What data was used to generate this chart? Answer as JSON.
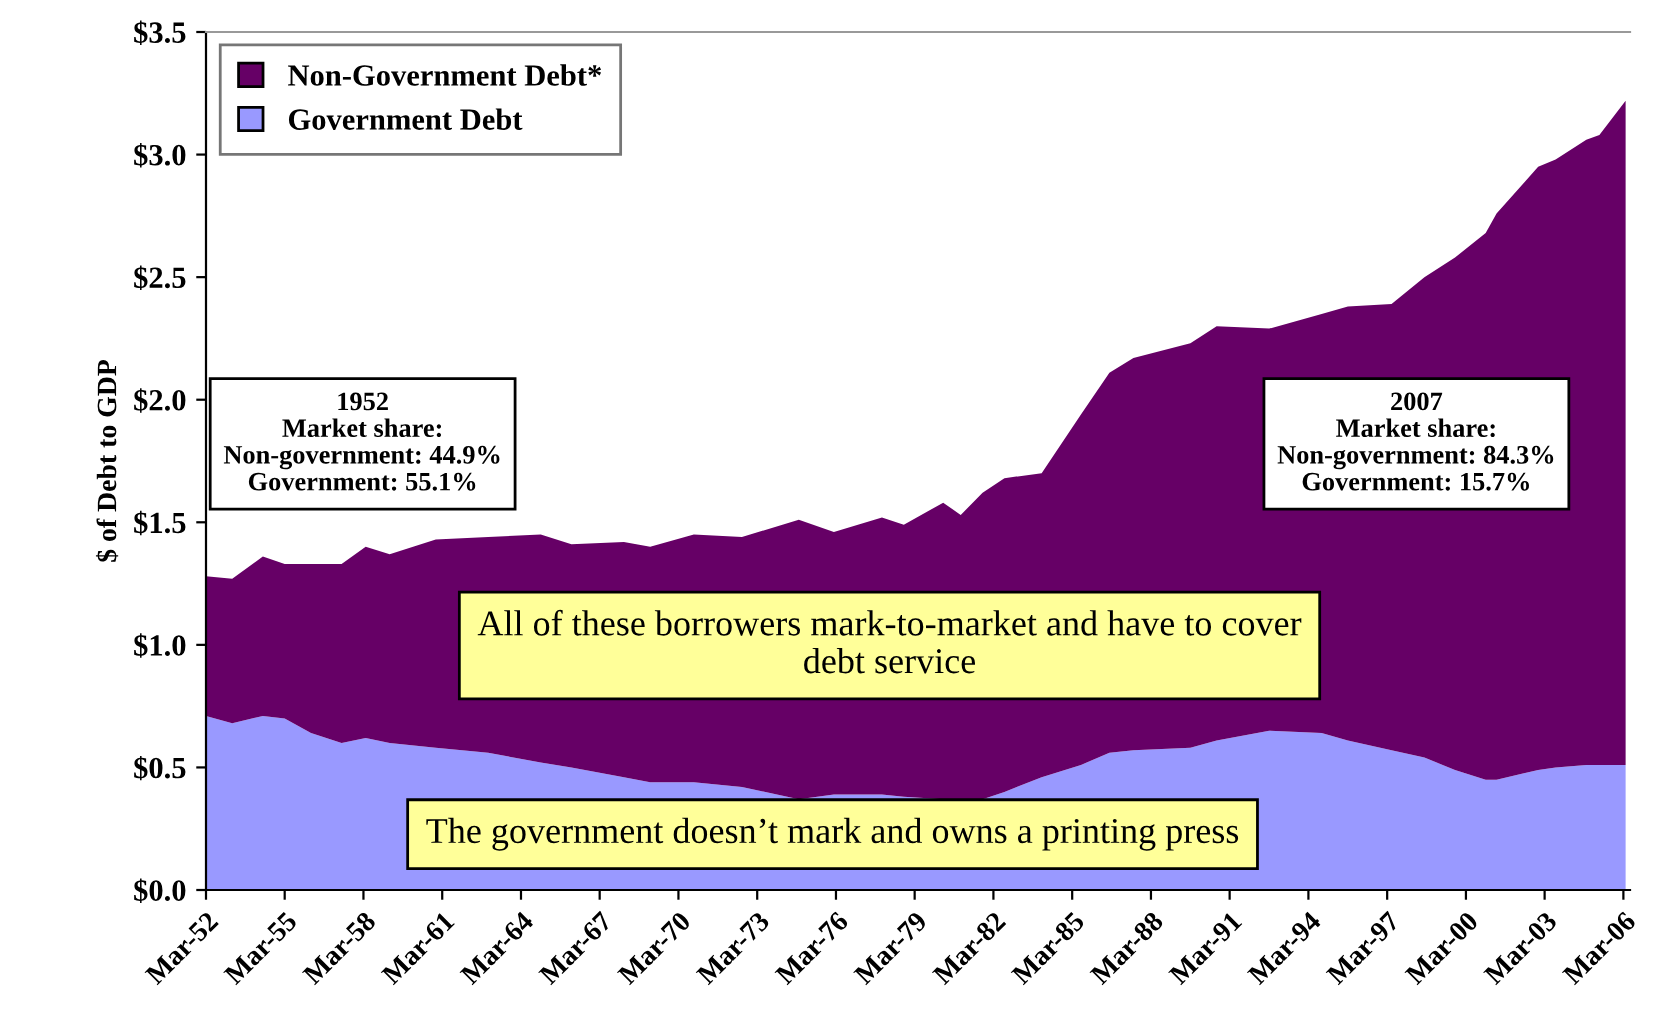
{
  "chart_data": {
    "type": "area",
    "stacked": true,
    "ylabel": "$ of Debt to GDP",
    "x": [
      "1952-03",
      "1953-03",
      "1954-05",
      "1955-03",
      "1956-03",
      "1957-05",
      "1958-04",
      "1959-03",
      "1960-12",
      "1962-12",
      "1964-12",
      "1966-02",
      "1968-02",
      "1969-02",
      "1970-10",
      "1972-08",
      "1974-10",
      "1976-02",
      "1977-12",
      "1978-10",
      "1980-04",
      "1980-12",
      "1981-10",
      "1982-08",
      "1984-01",
      "1985-07",
      "1986-08",
      "1987-07",
      "1989-09",
      "1990-09",
      "1992-09",
      "1994-09",
      "1995-09",
      "1997-05",
      "1998-08",
      "1999-10",
      "2000-12",
      "2001-05",
      "2002-12",
      "2003-08",
      "2004-10",
      "2005-04",
      "2006-04"
    ],
    "series": [
      {
        "name": "Government Debt",
        "color": "#9999ff",
        "values": [
          0.71,
          0.68,
          0.71,
          0.7,
          0.64,
          0.6,
          0.62,
          0.6,
          0.58,
          0.56,
          0.52,
          0.5,
          0.46,
          0.44,
          0.44,
          0.42,
          0.37,
          0.39,
          0.39,
          0.38,
          0.37,
          0.37,
          0.37,
          0.4,
          0.46,
          0.51,
          0.56,
          0.57,
          0.58,
          0.61,
          0.65,
          0.64,
          0.61,
          0.57,
          0.54,
          0.49,
          0.45,
          0.45,
          0.49,
          0.5,
          0.51,
          0.51,
          0.51
        ]
      },
      {
        "name": "Non-Government Debt*",
        "color": "#660066",
        "values": [
          0.57,
          0.59,
          0.65,
          0.63,
          0.69,
          0.73,
          0.78,
          0.77,
          0.85,
          0.88,
          0.93,
          0.91,
          0.96,
          0.96,
          1.01,
          1.02,
          1.14,
          1.07,
          1.13,
          1.11,
          1.21,
          1.16,
          1.25,
          1.28,
          1.24,
          1.43,
          1.55,
          1.6,
          1.65,
          1.69,
          1.64,
          1.71,
          1.77,
          1.82,
          1.96,
          2.09,
          2.23,
          2.31,
          2.46,
          2.48,
          2.55,
          2.57,
          2.71
        ]
      }
    ],
    "ylim": [
      0,
      3.5
    ],
    "yticks": [
      {
        "value": 0,
        "label": "$0.0"
      },
      {
        "value": 0.5,
        "label": "$0.5"
      },
      {
        "value": 1,
        "label": "$1.0"
      },
      {
        "value": 1.5,
        "label": "$1.5"
      },
      {
        "value": 2,
        "label": "$2.0"
      },
      {
        "value": 2.5,
        "label": "$2.5"
      },
      {
        "value": 3,
        "label": "$3.0"
      },
      {
        "value": 3.5,
        "label": "$3.5"
      }
    ],
    "xlim": [
      "1952-03",
      "2006-06"
    ],
    "xticks": [
      {
        "value": "1952-03",
        "label": "Mar-52"
      },
      {
        "value": "1955-03",
        "label": "Mar-55"
      },
      {
        "value": "1958-03",
        "label": "Mar-58"
      },
      {
        "value": "1961-03",
        "label": "Mar-61"
      },
      {
        "value": "1964-03",
        "label": "Mar-64"
      },
      {
        "value": "1967-03",
        "label": "Mar-67"
      },
      {
        "value": "1970-03",
        "label": "Mar-70"
      },
      {
        "value": "1973-03",
        "label": "Mar-73"
      },
      {
        "value": "1976-03",
        "label": "Mar-76"
      },
      {
        "value": "1979-03",
        "label": "Mar-79"
      },
      {
        "value": "1982-03",
        "label": "Mar-82"
      },
      {
        "value": "1985-03",
        "label": "Mar-85"
      },
      {
        "value": "1988-03",
        "label": "Mar-88"
      },
      {
        "value": "1991-03",
        "label": "Mar-91"
      },
      {
        "value": "1994-03",
        "label": "Mar-94"
      },
      {
        "value": "1997-03",
        "label": "Mar-97"
      },
      {
        "value": "2000-03",
        "label": "Mar-00"
      },
      {
        "value": "2003-03",
        "label": "Mar-03"
      },
      {
        "value": "2006-03",
        "label": "Mar-06"
      }
    ],
    "legend": "top left",
    "grid": false,
    "annotations": [
      "1952\nMarket share:\nNon-government: 44.9%\nGovernment: 55.1%",
      "2007\nMarket share:\nNon-government: 84.3%\nGovernment: 15.7%",
      "All of these borrowers mark-to-market and have to cover\ndebt service",
      "The government doesn’t mark and owns a printing press"
    ]
  }
}
